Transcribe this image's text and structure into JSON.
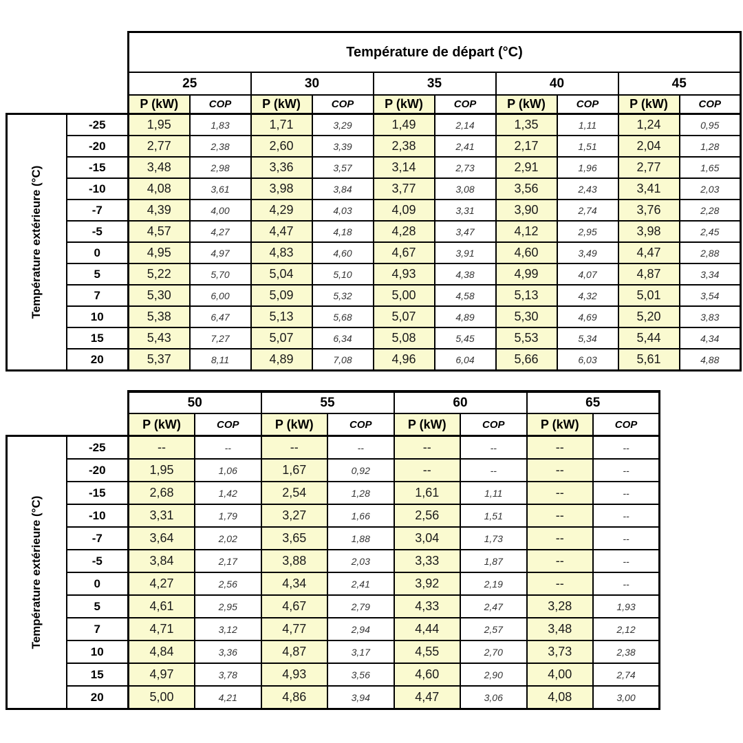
{
  "table1": {
    "title": "Température de départ (°C)",
    "side_label": "Température extérieure (°C)",
    "col_groups": [
      "25",
      "30",
      "35",
      "40",
      "45"
    ],
    "p_label": "P (kW)",
    "cop_label": "COP",
    "rows": [
      {
        "t": "-25",
        "cells": [
          "1,95",
          "1,83",
          "1,71",
          "3,29",
          "1,49",
          "2,14",
          "1,35",
          "1,11",
          "1,24",
          "0,95"
        ]
      },
      {
        "t": "-20",
        "cells": [
          "2,77",
          "2,38",
          "2,60",
          "3,39",
          "2,38",
          "2,41",
          "2,17",
          "1,51",
          "2,04",
          "1,28"
        ]
      },
      {
        "t": "-15",
        "cells": [
          "3,48",
          "2,98",
          "3,36",
          "3,57",
          "3,14",
          "2,73",
          "2,91",
          "1,96",
          "2,77",
          "1,65"
        ]
      },
      {
        "t": "-10",
        "cells": [
          "4,08",
          "3,61",
          "3,98",
          "3,84",
          "3,77",
          "3,08",
          "3,56",
          "2,43",
          "3,41",
          "2,03"
        ]
      },
      {
        "t": "-7",
        "cells": [
          "4,39",
          "4,00",
          "4,29",
          "4,03",
          "4,09",
          "3,31",
          "3,90",
          "2,74",
          "3,76",
          "2,28"
        ]
      },
      {
        "t": "-5",
        "cells": [
          "4,57",
          "4,27",
          "4,47",
          "4,18",
          "4,28",
          "3,47",
          "4,12",
          "2,95",
          "3,98",
          "2,45"
        ]
      },
      {
        "t": "0",
        "cells": [
          "4,95",
          "4,97",
          "4,83",
          "4,60",
          "4,67",
          "3,91",
          "4,60",
          "3,49",
          "4,47",
          "2,88"
        ]
      },
      {
        "t": "5",
        "cells": [
          "5,22",
          "5,70",
          "5,04",
          "5,10",
          "4,93",
          "4,38",
          "4,99",
          "4,07",
          "4,87",
          "3,34"
        ]
      },
      {
        "t": "7",
        "cells": [
          "5,30",
          "6,00",
          "5,09",
          "5,32",
          "5,00",
          "4,58",
          "5,13",
          "4,32",
          "5,01",
          "3,54"
        ]
      },
      {
        "t": "10",
        "cells": [
          "5,38",
          "6,47",
          "5,13",
          "5,68",
          "5,07",
          "4,89",
          "5,30",
          "4,69",
          "5,20",
          "3,83"
        ]
      },
      {
        "t": "15",
        "cells": [
          "5,43",
          "7,27",
          "5,07",
          "6,34",
          "5,08",
          "5,45",
          "5,53",
          "5,34",
          "5,44",
          "4,34"
        ]
      },
      {
        "t": "20",
        "cells": [
          "5,37",
          "8,11",
          "4,89",
          "7,08",
          "4,96",
          "6,04",
          "5,66",
          "6,03",
          "5,61",
          "4,88"
        ]
      }
    ]
  },
  "table2": {
    "side_label": "Température extérieure (°C)",
    "col_groups": [
      "50",
      "55",
      "60",
      "65"
    ],
    "p_label": "P (kW)",
    "cop_label": "COP",
    "rows": [
      {
        "t": "-25",
        "cells": [
          "--",
          "--",
          "--",
          "--",
          "--",
          "--",
          "--",
          "--"
        ]
      },
      {
        "t": "-20",
        "cells": [
          "1,95",
          "1,06",
          "1,67",
          "0,92",
          "--",
          "--",
          "--",
          "--"
        ]
      },
      {
        "t": "-15",
        "cells": [
          "2,68",
          "1,42",
          "2,54",
          "1,28",
          "1,61",
          "1,11",
          "--",
          "--"
        ]
      },
      {
        "t": "-10",
        "cells": [
          "3,31",
          "1,79",
          "3,27",
          "1,66",
          "2,56",
          "1,51",
          "--",
          "--"
        ]
      },
      {
        "t": "-7",
        "cells": [
          "3,64",
          "2,02",
          "3,65",
          "1,88",
          "3,04",
          "1,73",
          "--",
          "--"
        ]
      },
      {
        "t": "-5",
        "cells": [
          "3,84",
          "2,17",
          "3,88",
          "2,03",
          "3,33",
          "1,87",
          "--",
          "--"
        ]
      },
      {
        "t": "0",
        "cells": [
          "4,27",
          "2,56",
          "4,34",
          "2,41",
          "3,92",
          "2,19",
          "--",
          "--"
        ]
      },
      {
        "t": "5",
        "cells": [
          "4,61",
          "2,95",
          "4,67",
          "2,79",
          "4,33",
          "2,47",
          "3,28",
          "1,93"
        ]
      },
      {
        "t": "7",
        "cells": [
          "4,71",
          "3,12",
          "4,77",
          "2,94",
          "4,44",
          "2,57",
          "3,48",
          "2,12"
        ]
      },
      {
        "t": "10",
        "cells": [
          "4,84",
          "3,36",
          "4,87",
          "3,17",
          "4,55",
          "2,70",
          "3,73",
          "2,38"
        ]
      },
      {
        "t": "15",
        "cells": [
          "4,97",
          "3,78",
          "4,93",
          "3,56",
          "4,60",
          "2,90",
          "4,00",
          "2,74"
        ]
      },
      {
        "t": "20",
        "cells": [
          "5,00",
          "4,21",
          "4,86",
          "3,94",
          "4,47",
          "3,06",
          "4,08",
          "3,00"
        ]
      }
    ]
  },
  "colors": {
    "p_column_bg": "#fafad0",
    "border": "#000000",
    "background": "#ffffff"
  }
}
